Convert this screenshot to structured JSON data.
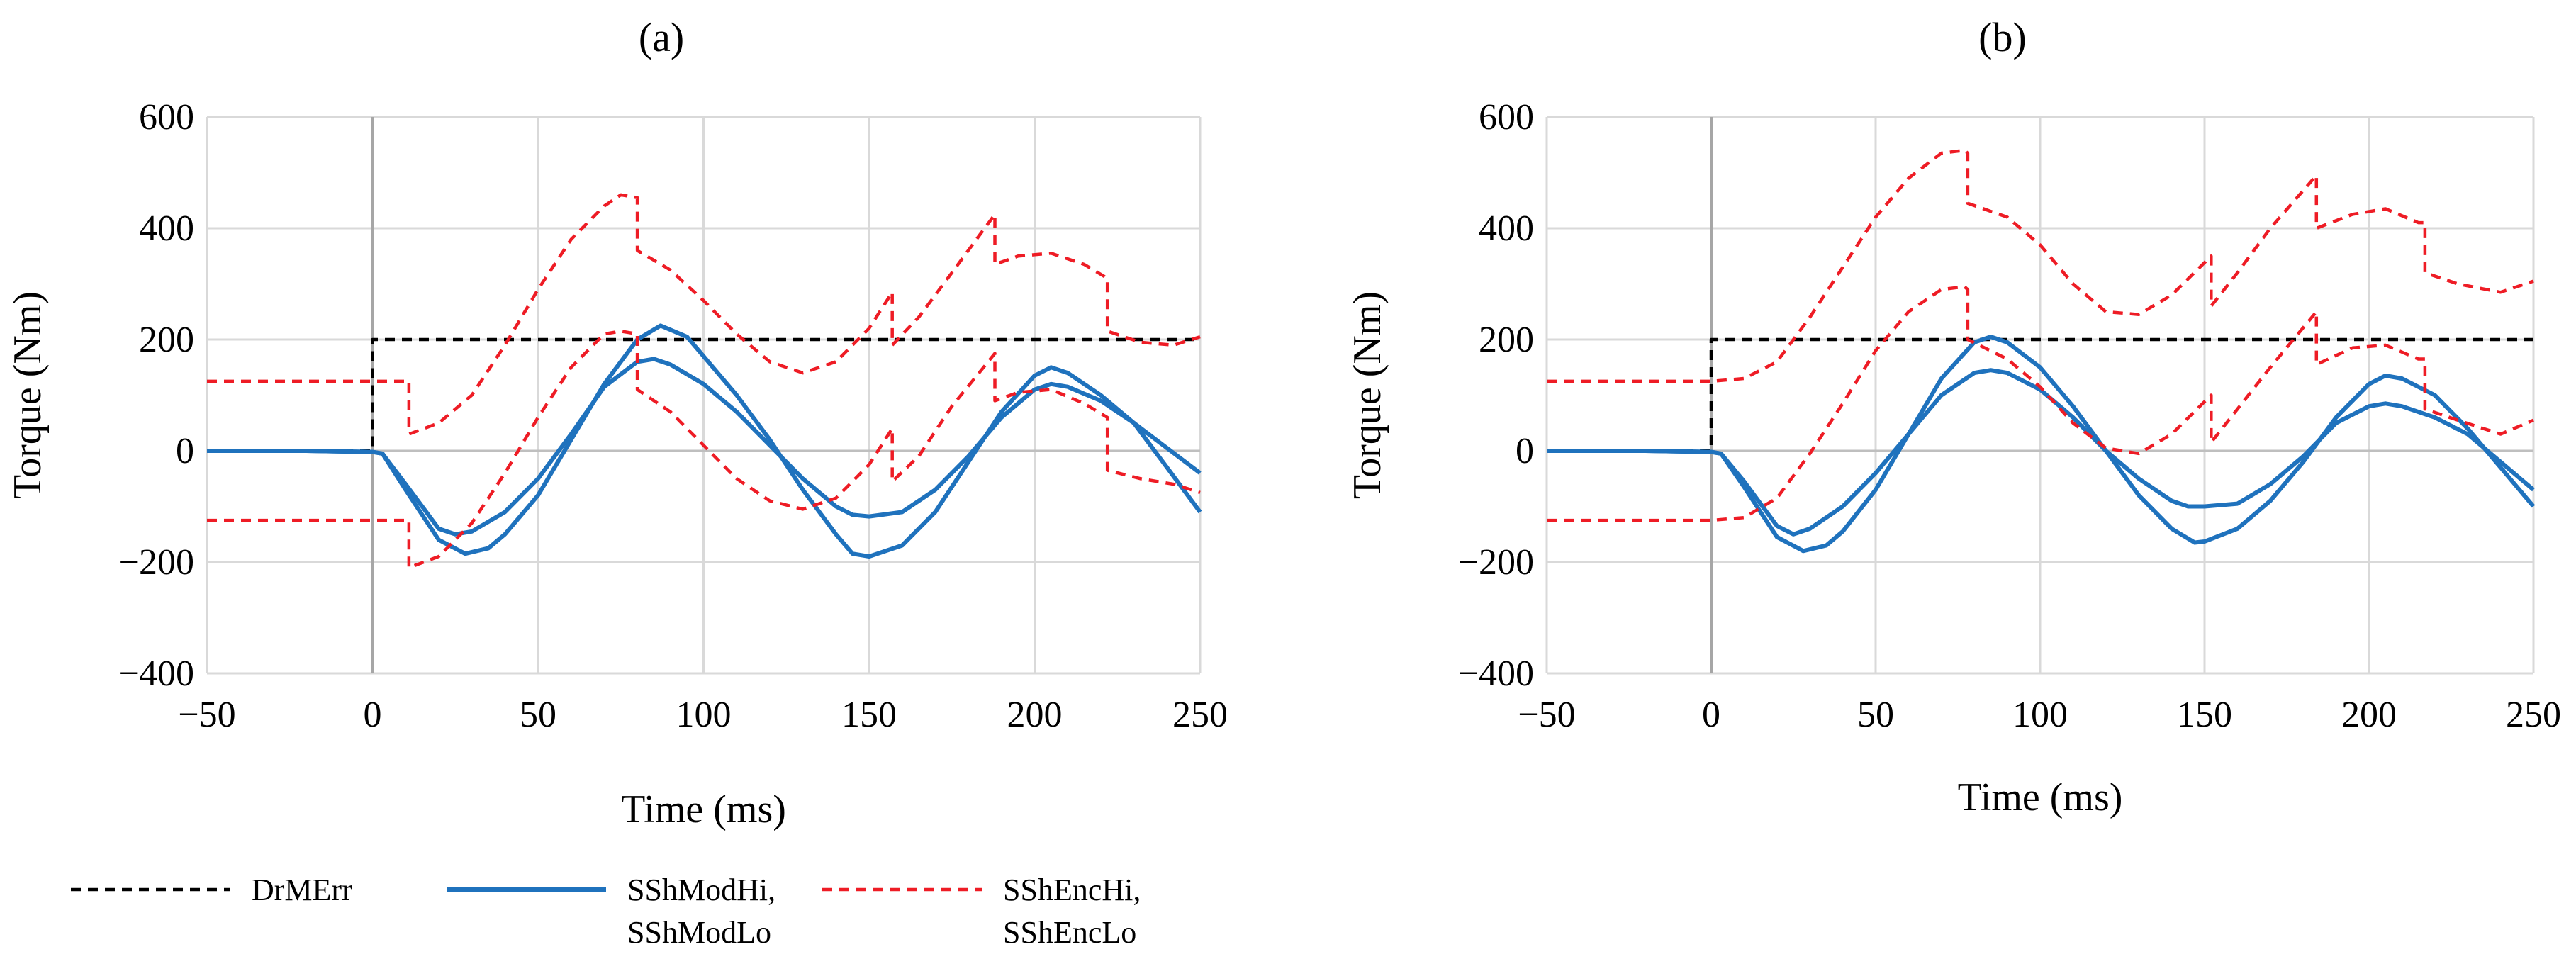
{
  "chart_data": [
    {
      "type": "line",
      "title": "(a)",
      "xlabel": "Time (ms)",
      "ylabel": "Torque (Nm)",
      "xlim": [
        -50,
        250
      ],
      "ylim": [
        -400,
        600
      ],
      "xticks": [
        -50,
        0,
        50,
        100,
        150,
        200,
        250
      ],
      "yticks": [
        -400,
        -200,
        0,
        200,
        400,
        600
      ],
      "xtick_labels": [
        "−50",
        "0",
        "50",
        "100",
        "150",
        "200",
        "250"
      ],
      "ytick_labels": [
        "−400",
        "−200",
        "0",
        "200",
        "400",
        "600"
      ],
      "grid": true,
      "vertical_marker_x": 0,
      "series": [
        {
          "name": "DrMErr",
          "color": "#000000",
          "dash": "dashed",
          "x": [
            -50,
            0,
            0,
            250
          ],
          "y": [
            0,
            0,
            200,
            200
          ]
        },
        {
          "name": "SShModHi",
          "color": "#1f72bd",
          "dash": "solid",
          "x": [
            -50,
            -20,
            0,
            3,
            10,
            20,
            25,
            30,
            40,
            50,
            60,
            70,
            80,
            85,
            90,
            100,
            110,
            120,
            130,
            140,
            145,
            150,
            160,
            170,
            180,
            190,
            200,
            205,
            210,
            220,
            230,
            240,
            250
          ],
          "y": [
            0,
            0,
            -2,
            -5,
            -60,
            -140,
            -150,
            -145,
            -110,
            -50,
            30,
            115,
            160,
            165,
            155,
            120,
            70,
            10,
            -50,
            -100,
            -115,
            -118,
            -110,
            -70,
            -10,
            60,
            110,
            120,
            115,
            90,
            50,
            5,
            -40
          ]
        },
        {
          "name": "SShModLo",
          "color": "#1f72bd",
          "dash": "solid",
          "x": [
            -50,
            -20,
            0,
            3,
            10,
            20,
            28,
            35,
            40,
            50,
            60,
            70,
            80,
            87,
            95,
            100,
            110,
            120,
            130,
            140,
            145,
            150,
            160,
            170,
            180,
            190,
            200,
            205,
            210,
            220,
            230,
            240,
            250
          ],
          "y": [
            0,
            0,
            -2,
            -5,
            -70,
            -160,
            -185,
            -175,
            -150,
            -80,
            20,
            120,
            200,
            225,
            205,
            170,
            100,
            20,
            -70,
            -150,
            -185,
            -190,
            -170,
            -110,
            -20,
            70,
            135,
            150,
            140,
            100,
            50,
            -30,
            -110
          ]
        },
        {
          "name": "SShEncHi",
          "color": "#ee1c25",
          "dash": "dashed",
          "x": [
            -50,
            0,
            11,
            11,
            20,
            30,
            40,
            50,
            60,
            70,
            75,
            80,
            80,
            90,
            100,
            110,
            120,
            130,
            140,
            150,
            157,
            157,
            165,
            175,
            188,
            188,
            195,
            205,
            215,
            222,
            222,
            232,
            242,
            250
          ],
          "y": [
            125,
            125,
            125,
            30,
            50,
            100,
            190,
            290,
            380,
            440,
            460,
            455,
            360,
            325,
            270,
            210,
            160,
            140,
            160,
            220,
            285,
            190,
            240,
            320,
            425,
            335,
            350,
            355,
            335,
            310,
            215,
            195,
            190,
            205
          ]
        },
        {
          "name": "SShEncLo",
          "color": "#ee1c25",
          "dash": "dashed",
          "x": [
            -50,
            0,
            11,
            11,
            20,
            30,
            40,
            50,
            60,
            70,
            75,
            80,
            80,
            90,
            100,
            110,
            120,
            130,
            140,
            150,
            157,
            157,
            165,
            175,
            188,
            188,
            195,
            205,
            215,
            222,
            222,
            232,
            242,
            250
          ],
          "y": [
            -125,
            -125,
            -125,
            -210,
            -190,
            -130,
            -40,
            60,
            150,
            210,
            215,
            210,
            110,
            70,
            10,
            -50,
            -90,
            -105,
            -85,
            -25,
            40,
            -55,
            -10,
            80,
            175,
            90,
            105,
            110,
            85,
            60,
            -35,
            -50,
            -60,
            -75
          ]
        }
      ]
    },
    {
      "type": "line",
      "title": "(b)",
      "xlabel": "Time (ms)",
      "ylabel": "Torque (Nm)",
      "xlim": [
        -50,
        250
      ],
      "ylim": [
        -400,
        600
      ],
      "xticks": [
        -50,
        0,
        50,
        100,
        150,
        200,
        250
      ],
      "yticks": [
        -400,
        -200,
        0,
        200,
        400,
        600
      ],
      "xtick_labels": [
        "−50",
        "0",
        "50",
        "100",
        "150",
        "200",
        "250"
      ],
      "ytick_labels": [
        "−400",
        "−200",
        "0",
        "200",
        "400",
        "600"
      ],
      "grid": true,
      "vertical_marker_x": 0,
      "series": [
        {
          "name": "DrMErr",
          "color": "#000000",
          "dash": "dashed",
          "x": [
            -50,
            0,
            0,
            250
          ],
          "y": [
            0,
            0,
            200,
            200
          ]
        },
        {
          "name": "SShModHi",
          "color": "#1f72bd",
          "dash": "solid",
          "x": [
            -50,
            -20,
            0,
            3,
            10,
            20,
            25,
            30,
            40,
            50,
            60,
            70,
            80,
            85,
            90,
            100,
            110,
            120,
            130,
            140,
            145,
            150,
            160,
            170,
            180,
            190,
            200,
            205,
            210,
            220,
            230,
            240,
            250
          ],
          "y": [
            0,
            0,
            -2,
            -5,
            -55,
            -135,
            -150,
            -140,
            -100,
            -40,
            30,
            100,
            140,
            145,
            140,
            110,
            60,
            0,
            -50,
            -90,
            -100,
            -100,
            -95,
            -60,
            -10,
            50,
            80,
            85,
            80,
            60,
            30,
            -20,
            -70
          ]
        },
        {
          "name": "SShModLo",
          "color": "#1f72bd",
          "dash": "solid",
          "x": [
            -50,
            -20,
            0,
            3,
            10,
            20,
            28,
            35,
            40,
            50,
            60,
            70,
            80,
            85,
            90,
            100,
            110,
            120,
            130,
            140,
            147,
            150,
            160,
            170,
            180,
            190,
            200,
            205,
            210,
            220,
            230,
            240,
            250
          ],
          "y": [
            0,
            0,
            -2,
            -5,
            -65,
            -155,
            -180,
            -170,
            -145,
            -70,
            30,
            130,
            195,
            205,
            195,
            150,
            80,
            0,
            -80,
            -140,
            -165,
            -163,
            -140,
            -90,
            -20,
            60,
            120,
            135,
            130,
            100,
            40,
            -30,
            -100
          ]
        },
        {
          "name": "SShEncHi",
          "color": "#ee1c25",
          "dash": "dashed",
          "x": [
            -50,
            0,
            10,
            20,
            30,
            40,
            50,
            60,
            70,
            77,
            78,
            78,
            90,
            100,
            110,
            120,
            130,
            140,
            152,
            152,
            160,
            170,
            184,
            184,
            195,
            205,
            215,
            217,
            217,
            227,
            240,
            250
          ],
          "y": [
            125,
            125,
            130,
            160,
            240,
            330,
            420,
            490,
            535,
            540,
            535,
            445,
            420,
            370,
            300,
            250,
            245,
            280,
            350,
            260,
            320,
            400,
            495,
            400,
            425,
            435,
            410,
            410,
            320,
            300,
            285,
            305
          ]
        },
        {
          "name": "SShEncLo",
          "color": "#ee1c25",
          "dash": "dashed",
          "x": [
            -50,
            0,
            10,
            20,
            30,
            40,
            50,
            60,
            70,
            77,
            78,
            78,
            90,
            100,
            110,
            120,
            130,
            140,
            152,
            152,
            160,
            170,
            184,
            184,
            195,
            205,
            215,
            217,
            217,
            227,
            240,
            250
          ],
          "y": [
            -125,
            -125,
            -120,
            -85,
            -5,
            85,
            180,
            250,
            290,
            295,
            290,
            200,
            165,
            115,
            50,
            5,
            -5,
            30,
            100,
            15,
            75,
            150,
            250,
            155,
            185,
            190,
            165,
            165,
            75,
            55,
            30,
            55
          ]
        }
      ]
    }
  ],
  "legend": {
    "items": [
      {
        "key": "drmerr",
        "lines": [
          "DrMErr"
        ],
        "color": "#000000",
        "dash": "dashed"
      },
      {
        "key": "sshmod",
        "lines": [
          "SShModHi,",
          "SShModLo"
        ],
        "color": "#1f72bd",
        "dash": "solid"
      },
      {
        "key": "sshenc",
        "lines": [
          "SShEncHi,",
          "SShEncLo"
        ],
        "color": "#ee1c25",
        "dash": "dashed"
      }
    ]
  }
}
